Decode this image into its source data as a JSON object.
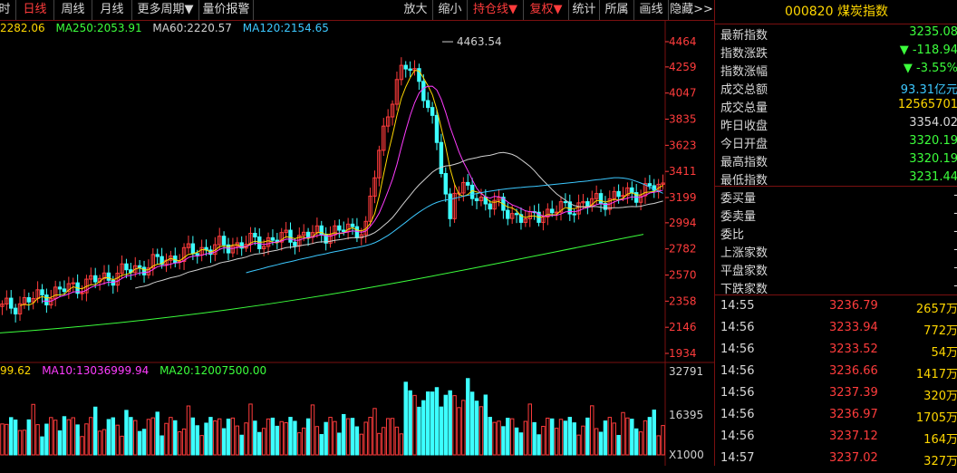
{
  "toolbar": {
    "items": [
      {
        "label": "分时",
        "active": false
      },
      {
        "label": "日线",
        "active": true
      },
      {
        "label": "周线",
        "active": false
      },
      {
        "label": "月线",
        "active": false
      },
      {
        "label": "更多周期▼",
        "active": false
      },
      {
        "label": "量价报警",
        "active": false
      },
      {
        "label": "放大",
        "active": false
      },
      {
        "label": "缩小",
        "active": false
      },
      {
        "label": "持仓线▼",
        "active": true
      },
      {
        "label": "复权▼",
        "active": true
      },
      {
        "label": "统计",
        "active": false
      },
      {
        "label": "所属",
        "active": false
      },
      {
        "label": "画线",
        "active": false
      },
      {
        "label": "隐藏>>",
        "active": false
      }
    ]
  },
  "price_ma": [
    {
      "label": "MA250:2053.91",
      "color": "#ff3c3c"
    },
    {
      "label": "MA60:2220.57",
      "color": "#d0d0d0"
    },
    {
      "label": "MA120:2154.65",
      "color": "#3cc8ff"
    }
  ],
  "price_ma_partial": "2282.06",
  "price_axis": [
    "4464",
    "4259",
    "4047",
    "3835",
    "3623",
    "3411",
    "3199",
    "2994",
    "2782",
    "2570",
    "2358",
    "2146",
    "1934"
  ],
  "peak_label": "4463.54",
  "vol_ma": [
    {
      "label": "99.62",
      "color": "#ffd700"
    },
    {
      "label": "MA10:13036999.94",
      "color": "#ff3cff"
    },
    {
      "label": "MA20:12007500.00",
      "color": "#3cff3c"
    }
  ],
  "vol_axis": [
    "32791",
    "16395",
    "X1000"
  ],
  "panel": {
    "title": "000820 煤炭指数",
    "stats": [
      {
        "label": "最新指数",
        "value": "3235.08",
        "color": "#3cff3c"
      },
      {
        "label": "指数涨跌",
        "value": "▼ -118.94",
        "color": "#3cff3c"
      },
      {
        "label": "指数涨幅",
        "value": "▼ -3.55%",
        "color": "#3cff3c"
      },
      {
        "label": "成交总额",
        "value": "93.31亿元",
        "color": "#3cc8ff"
      },
      {
        "label": "成交总量",
        "value": "12565701",
        "color": "#ffd700"
      },
      {
        "label": "昨日收盘",
        "value": "3354.02",
        "color": "#d8d8d8"
      },
      {
        "label": "今日开盘",
        "value": "3320.19",
        "color": "#3cff3c"
      },
      {
        "label": "最高指数",
        "value": "3320.19",
        "color": "#3cff3c"
      },
      {
        "label": "最低指数",
        "value": "3231.44",
        "color": "#3cff3c"
      }
    ],
    "order": [
      {
        "label": "委买量",
        "value": "-"
      },
      {
        "label": "委卖量",
        "value": "-"
      },
      {
        "label": "委比",
        "value": "-"
      },
      {
        "label": "上涨家数",
        "value": "-"
      },
      {
        "label": "平盘家数",
        "value": "-"
      },
      {
        "label": "下跌家数",
        "value": "-"
      }
    ],
    "ticks": [
      {
        "time": "14:55",
        "price": "3236.79",
        "vol": "2657万"
      },
      {
        "time": "14:56",
        "price": "3233.94",
        "vol": "772万"
      },
      {
        "time": "14:56",
        "price": "3233.52",
        "vol": "54万"
      },
      {
        "time": "14:56",
        "price": "3236.66",
        "vol": "1417万"
      },
      {
        "time": "14:56",
        "price": "3237.39",
        "vol": "320万"
      },
      {
        "time": "14:56",
        "price": "3236.97",
        "vol": "1705万"
      },
      {
        "time": "14:56",
        "price": "3237.12",
        "vol": "164万"
      },
      {
        "time": "14:57",
        "price": "3237.02",
        "vol": "327万"
      }
    ]
  },
  "colors": {
    "up": "#ff3c3c",
    "down": "#3cffff",
    "border": "#7a1010"
  }
}
